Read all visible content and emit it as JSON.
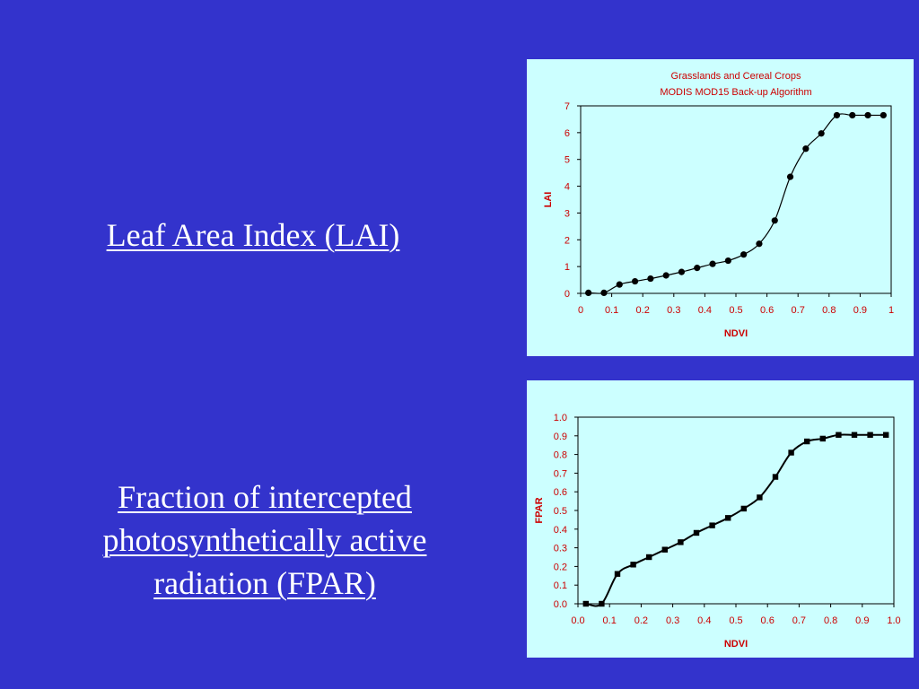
{
  "left_labels": {
    "lai": "Leaf Area Index (LAI)",
    "fpar_lines": [
      "Fraction of intercepted",
      "photosynthetically active",
      "radiation (FPAR)"
    ]
  },
  "colors": {
    "background": "#3333CC",
    "chart_panel": "#CCFFFF",
    "axis_text": "#CC0000",
    "series": "#000000"
  },
  "chart_data": [
    {
      "type": "line",
      "title": "Grasslands and Cereal Crops",
      "subtitle": "MODIS MOD15 Back-up Algorithm",
      "xlabel": "NDVI",
      "ylabel": "LAI",
      "xlim": [
        0,
        1
      ],
      "ylim": [
        0,
        7
      ],
      "x_ticks": [
        "0",
        "0.1",
        "0.2",
        "0.3",
        "0.4",
        "0.5",
        "0.6",
        "0.7",
        "0.8",
        "0.9",
        "1"
      ],
      "y_ticks": [
        "0",
        "1",
        "2",
        "3",
        "4",
        "5",
        "6",
        "7"
      ],
      "marker": "circle",
      "grid": false,
      "series": [
        {
          "x": [
            0.025,
            0.075,
            0.125,
            0.175,
            0.225,
            0.275,
            0.325,
            0.375,
            0.425,
            0.475,
            0.525,
            0.575,
            0.625,
            0.675,
            0.725,
            0.775,
            0.825,
            0.875,
            0.925,
            0.975
          ],
          "values": [
            0.02,
            0.02,
            0.33,
            0.45,
            0.55,
            0.67,
            0.8,
            0.95,
            1.1,
            1.22,
            1.45,
            1.85,
            2.72,
            4.35,
            5.4,
            5.97,
            6.65,
            6.65,
            6.65,
            6.65
          ]
        }
      ]
    },
    {
      "type": "line",
      "title": "",
      "xlabel": "NDVI",
      "ylabel": "FPAR",
      "xlim": [
        0,
        1
      ],
      "ylim": [
        0,
        1
      ],
      "x_ticks": [
        "0.0",
        "0.1",
        "0.2",
        "0.3",
        "0.4",
        "0.5",
        "0.6",
        "0.7",
        "0.8",
        "0.9",
        "1.0"
      ],
      "y_ticks": [
        "0.0",
        "0.1",
        "0.2",
        "0.3",
        "0.4",
        "0.5",
        "0.6",
        "0.7",
        "0.8",
        "0.9",
        "1.0"
      ],
      "marker": "square",
      "grid": false,
      "series": [
        {
          "x": [
            0.025,
            0.075,
            0.125,
            0.175,
            0.225,
            0.275,
            0.325,
            0.375,
            0.425,
            0.475,
            0.525,
            0.575,
            0.625,
            0.675,
            0.725,
            0.775,
            0.825,
            0.875,
            0.925,
            0.975
          ],
          "values": [
            0.0,
            0.0,
            0.16,
            0.21,
            0.25,
            0.29,
            0.33,
            0.38,
            0.42,
            0.46,
            0.51,
            0.57,
            0.68,
            0.81,
            0.87,
            0.885,
            0.905,
            0.905,
            0.905,
            0.905
          ]
        }
      ]
    }
  ]
}
